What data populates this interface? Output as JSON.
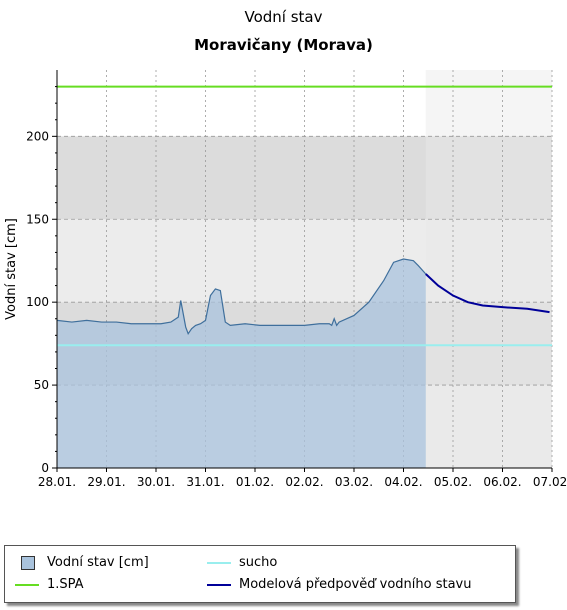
{
  "chart_data": {
    "type": "area",
    "title": "Vodní stav",
    "subtitle": "Moravičany (Morava)",
    "ylabel": "Vodní stav [cm]",
    "xlabel": "",
    "x_ticks": [
      "28.01.",
      "29.01.",
      "30.01.",
      "31.01.",
      "01.02.",
      "02.02.",
      "03.02.",
      "04.02.",
      "05.02.",
      "06.02.",
      "07.02."
    ],
    "y_ticks": [
      0,
      50,
      100,
      150,
      200
    ],
    "xlim": [
      0,
      10
    ],
    "ylim": [
      0,
      240
    ],
    "grid": true,
    "legend_position": "bottom",
    "bands": [
      {
        "from": 0,
        "to": 50,
        "shade": "light"
      },
      {
        "from": 50,
        "to": 100,
        "shade": "dark"
      },
      {
        "from": 100,
        "to": 150,
        "shade": "light"
      },
      {
        "from": 150,
        "to": 200,
        "shade": "dark"
      }
    ],
    "observed_end": 7.45,
    "series": [
      {
        "name": "Vodní stav [cm]",
        "kind": "area",
        "color": "#3f6f9c",
        "fill": "#a9c3dd",
        "x": [
          0,
          0.3,
          0.6,
          0.9,
          1.2,
          1.5,
          1.8,
          2.1,
          2.3,
          2.45,
          2.5,
          2.6,
          2.65,
          2.72,
          2.8,
          2.9,
          3.0,
          3.1,
          3.2,
          3.3,
          3.4,
          3.5,
          3.8,
          4.1,
          4.4,
          4.7,
          5.0,
          5.3,
          5.5,
          5.55,
          5.6,
          5.65,
          5.7,
          6.0,
          6.3,
          6.6,
          6.8,
          7.0,
          7.2,
          7.3,
          7.45
        ],
        "y": [
          89,
          88,
          89,
          88,
          88,
          87,
          87,
          87,
          88,
          91,
          101,
          85,
          81,
          84,
          86,
          87,
          89,
          104,
          108,
          107,
          88,
          86,
          87,
          86,
          86,
          86,
          86,
          87,
          87,
          86,
          90,
          86,
          88,
          92,
          100,
          113,
          124,
          126,
          125,
          122,
          117
        ]
      },
      {
        "name": "Modelová předpověď vodního stavu",
        "kind": "line",
        "color": "#000099",
        "x": [
          7.45,
          7.7,
          8.0,
          8.3,
          8.6,
          9.0,
          9.5,
          9.95
        ],
        "y": [
          117,
          110,
          104,
          100,
          98,
          97,
          96,
          94
        ]
      }
    ],
    "thresholds": [
      {
        "name": "1.SPA",
        "value": 230,
        "color": "#66dd22"
      },
      {
        "name": "sucho",
        "value": 74,
        "color": "#99eeee"
      }
    ],
    "legend": [
      {
        "label": "Vodní stav [cm]",
        "symbol": "box",
        "color": "#a9c3dd"
      },
      {
        "label": "sucho",
        "symbol": "line",
        "color": "#99eeee"
      },
      {
        "label": "1.SPA",
        "symbol": "line",
        "color": "#66dd22"
      },
      {
        "label": "Modelová předpověď vodního stavu",
        "symbol": "line",
        "color": "#000099"
      }
    ],
    "colors": {
      "band_light": "#ececec",
      "band_dark": "#dcdcdc",
      "forecast_region": "#e8e8e8",
      "grid": "#999999"
    }
  }
}
